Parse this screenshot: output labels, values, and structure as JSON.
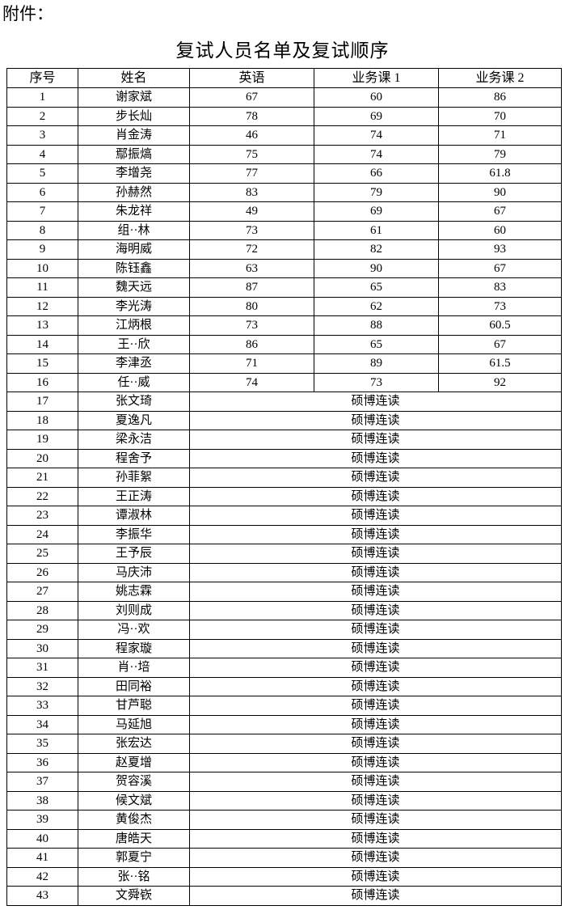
{
  "header": {
    "label": "附件：",
    "title": "复试人员名单及复试顺序"
  },
  "table": {
    "columns": [
      "序号",
      "姓名",
      "英语",
      "业务课 1",
      "业务课 2"
    ],
    "rows": [
      [
        "1",
        "谢家斌",
        "67",
        "60",
        "86"
      ],
      [
        "2",
        "步长灿",
        "78",
        "69",
        "70"
      ],
      [
        "3",
        "肖金涛",
        "46",
        "74",
        "71"
      ],
      [
        "4",
        "鄢振熇",
        "75",
        "74",
        "79"
      ],
      [
        "5",
        "李增尧",
        "77",
        "66",
        "61.8"
      ],
      [
        "6",
        "孙赫然",
        "83",
        "79",
        "90"
      ],
      [
        "7",
        "朱龙祥",
        "49",
        "69",
        "67"
      ],
      [
        "8",
        "组··林",
        "73",
        "61",
        "60"
      ],
      [
        "9",
        "海明威",
        "72",
        "82",
        "93"
      ],
      [
        "10",
        "陈钰鑫",
        "63",
        "90",
        "67"
      ],
      [
        "11",
        "魏天远",
        "87",
        "65",
        "83"
      ],
      [
        "12",
        "李光涛",
        "80",
        "62",
        "73"
      ],
      [
        "13",
        "江炳根",
        "73",
        "88",
        "60.5"
      ],
      [
        "14",
        "王··欣",
        "86",
        "65",
        "67"
      ],
      [
        "15",
        "李津丞",
        "71",
        "89",
        "61.5"
      ],
      [
        "16",
        "任··威",
        "74",
        "73",
        "92"
      ],
      [
        "17",
        "张文琦",
        "硕博连读"
      ],
      [
        "18",
        "夏逸凡",
        "硕博连读"
      ],
      [
        "19",
        "梁永洁",
        "硕博连读"
      ],
      [
        "20",
        "程舍予",
        "硕博连读"
      ],
      [
        "21",
        "孙菲絮",
        "硕博连读"
      ],
      [
        "22",
        "王正涛",
        "硕博连读"
      ],
      [
        "23",
        "谭淑林",
        "硕博连读"
      ],
      [
        "24",
        "李振华",
        "硕博连读"
      ],
      [
        "25",
        "王予辰",
        "硕博连读"
      ],
      [
        "26",
        "马庆沛",
        "硕博连读"
      ],
      [
        "27",
        "姚志霖",
        "硕博连读"
      ],
      [
        "28",
        "刘则成",
        "硕博连读"
      ],
      [
        "29",
        "冯··欢",
        "硕博连读"
      ],
      [
        "30",
        "程家璇",
        "硕博连读"
      ],
      [
        "31",
        "肖··培",
        "硕博连读"
      ],
      [
        "32",
        "田同裕",
        "硕博连读"
      ],
      [
        "33",
        "甘芦聪",
        "硕博连读"
      ],
      [
        "34",
        "马延旭",
        "硕博连读"
      ],
      [
        "35",
        "张宏达",
        "硕博连读"
      ],
      [
        "36",
        "赵夏增",
        "硕博连读"
      ],
      [
        "37",
        "贺容溪",
        "硕博连读"
      ],
      [
        "38",
        "候文斌",
        "硕博连读"
      ],
      [
        "39",
        "黄俊杰",
        "硕博连读"
      ],
      [
        "40",
        "唐皓天",
        "硕博连读"
      ],
      [
        "41",
        "郭夏宁",
        "硕博连读"
      ],
      [
        "42",
        "张··铭",
        "硕博连读"
      ],
      [
        "43",
        "文舜嵚",
        "硕博连读"
      ]
    ]
  }
}
